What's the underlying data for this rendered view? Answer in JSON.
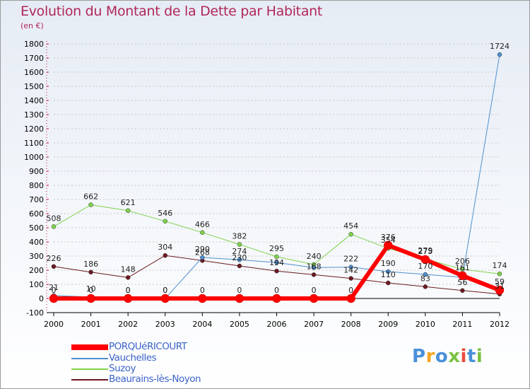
{
  "title": "Evolution du Montant de la Dette par Habitant",
  "subtitle": "(en €)",
  "logo": {
    "text": "Proxiti",
    "colors": [
      "#4a90d9",
      "#f5a623",
      "#4a90d9",
      "#7ac143",
      "#e94b3c",
      "#4a90d9",
      "#7ac143"
    ]
  },
  "colors": {
    "title": "#b0275a",
    "grid": "#c8c8c8",
    "axis": "#000000",
    "background_top": "#e9eef6",
    "background_bottom": "#ffffff"
  },
  "chart_data": {
    "type": "line",
    "title": "Evolution du Montant de la Dette par Habitant",
    "subtitle": "(en €)",
    "xlabel": "",
    "ylabel": "",
    "x": [
      "2000",
      "2001",
      "2002",
      "2003",
      "2004",
      "2005",
      "2006",
      "2007",
      "2008",
      "2009",
      "2010",
      "2011",
      "2012"
    ],
    "ylim": [
      -100,
      1800
    ],
    "yticks": [
      -100,
      0,
      100,
      200,
      300,
      400,
      500,
      600,
      700,
      800,
      900,
      1000,
      1100,
      1200,
      1300,
      1400,
      1500,
      1600,
      1700,
      1800
    ],
    "grid": true,
    "legend_position": "bottom-left",
    "series": [
      {
        "name": "PORQUéRICOURT",
        "color": "#ff0000",
        "width": 6,
        "marker_r": 6,
        "values": [
          0,
          0,
          0,
          0,
          0,
          0,
          0,
          0,
          0,
          376,
          275,
          161,
          59
        ],
        "labels": [
          "0",
          "0",
          "0",
          "0",
          "0",
          "0",
          "0",
          "0",
          "0",
          "376",
          "275",
          "161",
          "59"
        ]
      },
      {
        "name": "Vauchelles",
        "color": "#4f8fcf",
        "width": 1,
        "marker_r": 3,
        "values": [
          21,
          10,
          0,
          0,
          290,
          274,
          254,
          218,
          222,
          190,
          170,
          150,
          1724
        ],
        "labels": [
          "21",
          "10",
          "0",
          "0",
          "290",
          "274",
          "",
          "",
          "222",
          "190",
          "170",
          "",
          "1724"
        ]
      },
      {
        "name": "Suzoy",
        "color": "#7ed24b",
        "width": 1,
        "marker_r": 3,
        "values": [
          508,
          662,
          621,
          546,
          466,
          382,
          295,
          240,
          454,
          354,
          279,
          206,
          174
        ],
        "labels": [
          "508",
          "662",
          "621",
          "546",
          "466",
          "382",
          "295",
          "240",
          "454",
          "354",
          "279",
          "206",
          "174"
        ]
      },
      {
        "name": "Beaurains-lès-Noyon",
        "color": "#6b1a20",
        "width": 1,
        "marker_r": 3,
        "values": [
          226,
          186,
          148,
          304,
          268,
          230,
          194,
          168,
          142,
          110,
          83,
          56,
          31
        ],
        "labels": [
          "226",
          "186",
          "148",
          "304",
          "268",
          "230",
          "194",
          "168",
          "142",
          "110",
          "83",
          "56",
          "31"
        ]
      }
    ]
  }
}
